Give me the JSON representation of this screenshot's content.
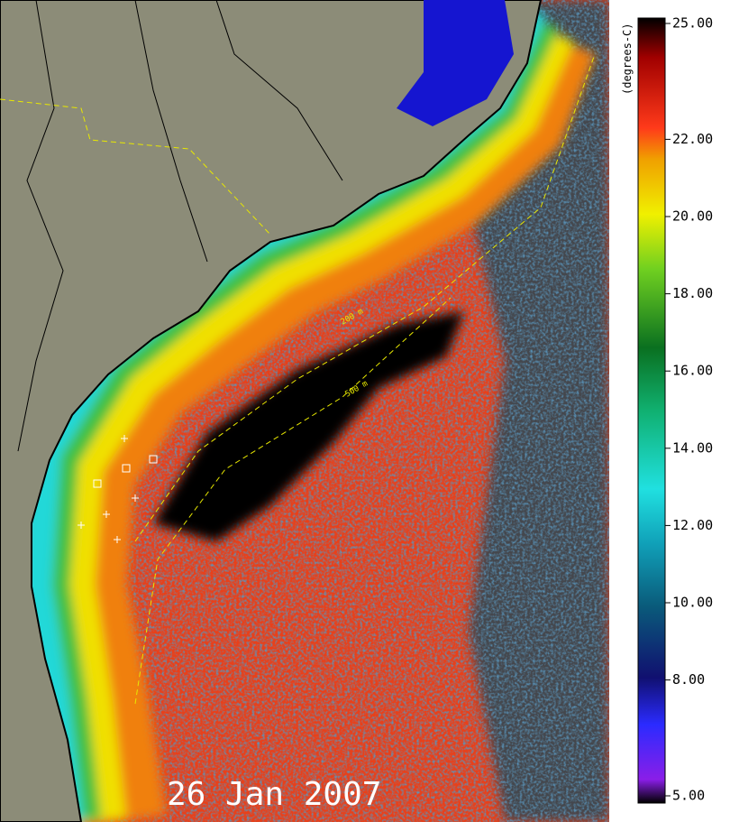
{
  "date": "26 Jan 2007",
  "isobaths": [
    "200 m",
    "500 m"
  ],
  "colorbar": {
    "label": "(degrees-C)",
    "range": [
      5,
      25
    ],
    "ticks": [
      {
        "value": 25,
        "label": "25.00"
      },
      {
        "value": 22,
        "label": "22.00"
      },
      {
        "value": 20,
        "label": "20.00"
      },
      {
        "value": 18,
        "label": "18.00"
      },
      {
        "value": 16,
        "label": "16.00"
      },
      {
        "value": 14,
        "label": "14.00"
      },
      {
        "value": 12,
        "label": "12.00"
      },
      {
        "value": 10,
        "label": "10.00"
      },
      {
        "value": 8,
        "label": "8.00"
      },
      {
        "value": 5,
        "label": "5.00"
      }
    ]
  }
}
